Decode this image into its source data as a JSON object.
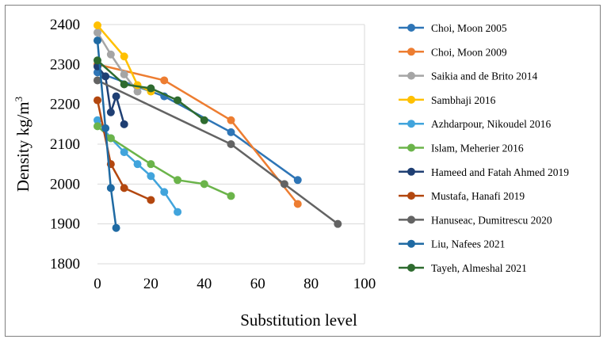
{
  "chart_data": {
    "type": "line",
    "title": "",
    "xlabel": "Substitution level",
    "ylabel": "Density kg/m",
    "ylabel_superscript": "3",
    "xlim": [
      0,
      100
    ],
    "ylim": [
      1800,
      2400
    ],
    "x_ticks": [
      0,
      20,
      40,
      60,
      80,
      100
    ],
    "y_ticks": [
      1800,
      1900,
      2000,
      2100,
      2200,
      2300,
      2400
    ],
    "grid": "horizontal",
    "legend_position": "right",
    "series": [
      {
        "name": "Choi, Moon 2005",
        "color": "#2E75B6",
        "x": [
          0,
          25,
          50,
          75
        ],
        "y": [
          2280,
          2220,
          2130,
          2010
        ]
      },
      {
        "name": "Choi, Moon 2009",
        "color": "#ED7D31",
        "x": [
          0,
          25,
          50,
          75
        ],
        "y": [
          2300,
          2260,
          2160,
          1950
        ]
      },
      {
        "name": "Saikia and de Brito 2014",
        "color": "#A5A5A5",
        "x": [
          0,
          5,
          10,
          15
        ],
        "y": [
          2380,
          2325,
          2275,
          2232
        ]
      },
      {
        "name": "Sambhaji 2016",
        "color": "#FFC000",
        "x": [
          0,
          10,
          15,
          20
        ],
        "y": [
          2398,
          2320,
          2248,
          2232
        ]
      },
      {
        "name": "Azhdarpour, Nikoudel 2016",
        "color": "#41A4DC",
        "x": [
          0,
          5,
          10,
          15,
          20,
          25,
          30
        ],
        "y": [
          2160,
          2115,
          2080,
          2050,
          2020,
          1980,
          1930
        ]
      },
      {
        "name": "Islam, Meherier 2016",
        "color": "#6BB44A",
        "x": [
          0,
          5,
          20,
          30,
          40,
          50
        ],
        "y": [
          2145,
          2115,
          2050,
          2010,
          2000,
          1970
        ]
      },
      {
        "name": "Hameed and Fatah Ahmed 2019",
        "color": "#1F3F73",
        "x": [
          0,
          3,
          5,
          7,
          10
        ],
        "y": [
          2295,
          2270,
          2180,
          2220,
          2150
        ]
      },
      {
        "name": "Mustafa, Hanafi 2019",
        "color": "#B3470F",
        "x": [
          0,
          5,
          10,
          20
        ],
        "y": [
          2210,
          2050,
          1990,
          1960
        ]
      },
      {
        "name": "Hanuseac, Dumitrescu 2020",
        "color": "#636363",
        "x": [
          0,
          50,
          70,
          90
        ],
        "y": [
          2260,
          2100,
          2000,
          1900
        ]
      },
      {
        "name": "Liu, Nafees 2021",
        "color": "#1F6AA3",
        "x": [
          0,
          3,
          5,
          7
        ],
        "y": [
          2360,
          2140,
          1990,
          1890
        ]
      },
      {
        "name": "Tayeh, Almeshal 2021",
        "color": "#2E6B2F",
        "x": [
          0,
          10,
          20,
          30,
          40
        ],
        "y": [
          2310,
          2250,
          2240,
          2210,
          2160
        ]
      }
    ]
  }
}
